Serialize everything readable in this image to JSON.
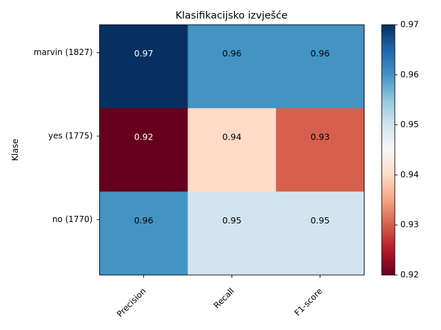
{
  "chart_data": {
    "type": "heatmap",
    "title": "Klasifikacijsko izvješće",
    "ylabel": "Klase",
    "xlabel": "",
    "columns": [
      "Precision",
      "Recall",
      "F1-score"
    ],
    "rows": [
      "marvin (1827)",
      "yes (1775)",
      "no (1770)"
    ],
    "values": [
      [
        0.97,
        0.96,
        0.96
      ],
      [
        0.92,
        0.94,
        0.93
      ],
      [
        0.96,
        0.95,
        0.95
      ]
    ],
    "cell_labels": [
      [
        "0.97",
        "0.96",
        "0.96"
      ],
      [
        "0.92",
        "0.94",
        "0.93"
      ],
      [
        "0.96",
        "0.95",
        "0.95"
      ]
    ],
    "colormap": "RdBu",
    "colorbar": {
      "range": [
        0.92,
        0.97
      ],
      "ticks": [
        0.92,
        0.93,
        0.94,
        0.95,
        0.96,
        0.97
      ],
      "tick_labels": [
        "0.92",
        "0.93",
        "0.94",
        "0.95",
        "0.96",
        "0.97"
      ]
    },
    "grid": false
  }
}
